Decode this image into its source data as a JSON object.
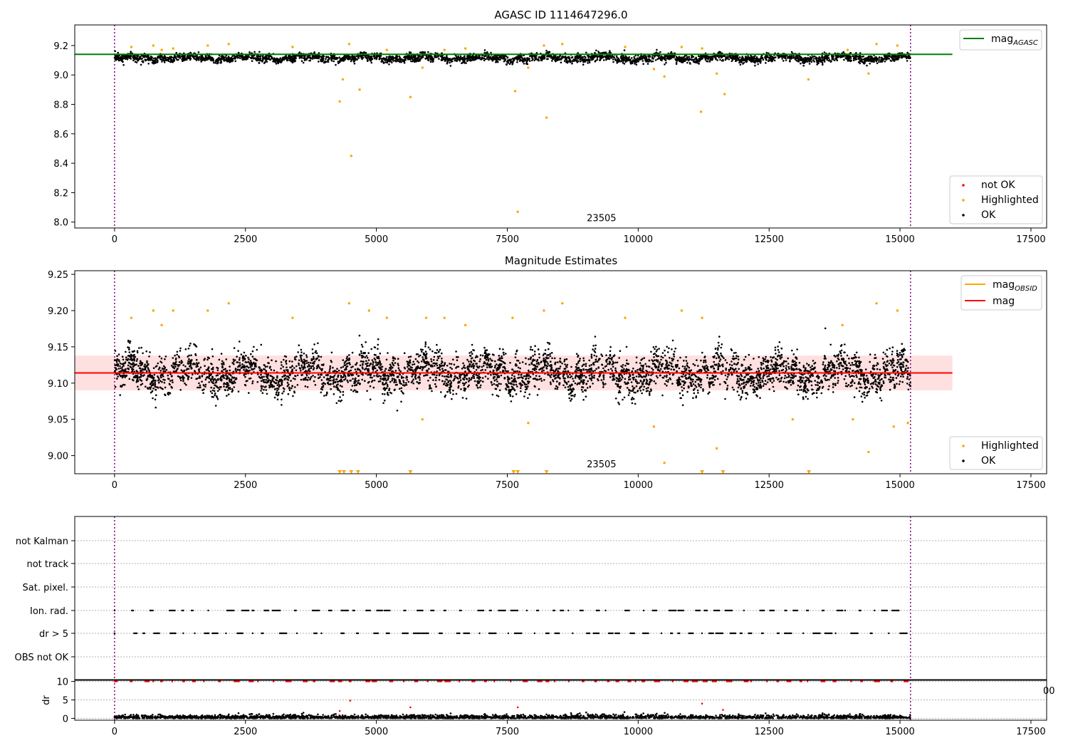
{
  "chart_data": [
    {
      "type": "scatter",
      "title": "AGASC ID 1114647296.0",
      "xlim": [
        -760,
        17800
      ],
      "ylim": [
        7.96,
        9.34
      ],
      "xticks": [
        0,
        2500,
        5000,
        7500,
        10000,
        12500,
        15000,
        17500
      ],
      "xtick_labels": [
        "0",
        "2500",
        "5000",
        "7500",
        "10000",
        "12500",
        "15000",
        "17500"
      ],
      "yticks": [
        8.0,
        8.2,
        8.4,
        8.6,
        8.8,
        9.0,
        9.2
      ],
      "ytick_labels": [
        "8.0",
        "8.2",
        "8.4",
        "8.6",
        "8.8",
        "9.0",
        "9.2"
      ],
      "vlines": [
        0,
        15200
      ],
      "annotation": {
        "text": "23505",
        "x": 7600,
        "y": 8.0
      },
      "hline": {
        "name": "mag",
        "sub": "AGASC",
        "value": 9.14,
        "x_range": [
          -760,
          16000
        ],
        "color": "#008000"
      },
      "series": [
        {
          "name": "not OK",
          "color": "#ff0000",
          "points": []
        },
        {
          "name": "Highlighted",
          "color": "#ffa500",
          "points": [
            [
              320,
              9.19
            ],
            [
              740,
              9.2
            ],
            [
              900,
              9.17
            ],
            [
              1120,
              9.18
            ],
            [
              1780,
              9.2
            ],
            [
              2180,
              9.21
            ],
            [
              3400,
              9.19
            ],
            [
              4300,
              8.82
            ],
            [
              4360,
              8.97
            ],
            [
              4480,
              9.21
            ],
            [
              4520,
              8.45
            ],
            [
              4680,
              8.9
            ],
            [
              5200,
              9.17
            ],
            [
              5650,
              8.85
            ],
            [
              5880,
              9.05
            ],
            [
              6300,
              9.17
            ],
            [
              6700,
              9.18
            ],
            [
              7650,
              8.89
            ],
            [
              7700,
              8.07
            ],
            [
              7900,
              9.05
            ],
            [
              8200,
              9.2
            ],
            [
              8250,
              8.71
            ],
            [
              8550,
              9.21
            ],
            [
              9750,
              9.19
            ],
            [
              10300,
              9.04
            ],
            [
              10500,
              8.99
            ],
            [
              10830,
              9.19
            ],
            [
              11200,
              8.75
            ],
            [
              11220,
              9.18
            ],
            [
              11500,
              9.01
            ],
            [
              11650,
              8.87
            ],
            [
              13250,
              8.97
            ],
            [
              14000,
              9.17
            ],
            [
              14400,
              9.01
            ],
            [
              14550,
              9.21
            ],
            [
              14950,
              9.2
            ]
          ]
        },
        {
          "name": "OK",
          "color": "#000000",
          "band": {
            "center": 9.115,
            "spread": 0.03
          }
        }
      ],
      "legend": [
        "mag_AGASC (top-right)",
        "not OK / Highlighted / OK (bottom-right)"
      ]
    },
    {
      "type": "scatter",
      "title": "Magnitude Estimates",
      "xlim": [
        -760,
        17800
      ],
      "ylim": [
        8.975,
        9.255
      ],
      "xticks": [
        0,
        2500,
        5000,
        7500,
        10000,
        12500,
        15000,
        17500
      ],
      "xtick_labels": [
        "0",
        "2500",
        "5000",
        "7500",
        "10000",
        "12500",
        "15000",
        "17500"
      ],
      "yticks": [
        9.0,
        9.05,
        9.1,
        9.15,
        9.2,
        9.25
      ],
      "ytick_labels": [
        "9.00",
        "9.05",
        "9.10",
        "9.15",
        "9.20",
        "9.25"
      ],
      "vlines": [
        0,
        15200
      ],
      "annotation": {
        "text": "23505",
        "x": 7600,
        "y": 8.982
      },
      "hline": {
        "name": "mag",
        "value": 9.114,
        "x_range": [
          -760,
          16000
        ],
        "color": "#ff0000"
      },
      "band": {
        "low": 9.09,
        "high": 9.138,
        "color": "#ffcccc"
      },
      "mag_obsid_sub": "OBSID",
      "series": [
        {
          "name": "Highlighted",
          "color": "#ffa500",
          "points": [
            [
              320,
              9.19
            ],
            [
              740,
              9.2
            ],
            [
              900,
              9.18
            ],
            [
              1120,
              9.2
            ],
            [
              1780,
              9.2
            ],
            [
              2180,
              9.21
            ],
            [
              3400,
              9.19
            ],
            [
              4480,
              9.21
            ],
            [
              4860,
              9.2
            ],
            [
              5200,
              9.19
            ],
            [
              5880,
              9.05
            ],
            [
              5950,
              9.19
            ],
            [
              6300,
              9.19
            ],
            [
              6700,
              9.18
            ],
            [
              7600,
              9.19
            ],
            [
              7900,
              9.045
            ],
            [
              8200,
              9.2
            ],
            [
              8550,
              9.21
            ],
            [
              9750,
              9.19
            ],
            [
              10300,
              9.04
            ],
            [
              10500,
              8.99
            ],
            [
              10830,
              9.2
            ],
            [
              11220,
              9.19
            ],
            [
              11500,
              9.01
            ],
            [
              12950,
              9.05
            ],
            [
              13900,
              9.18
            ],
            [
              14100,
              9.05
            ],
            [
              14400,
              9.005
            ],
            [
              14550,
              9.21
            ],
            [
              14880,
              9.04
            ],
            [
              14950,
              9.2
            ],
            [
              15150,
              9.045
            ]
          ]
        },
        {
          "name": "OK",
          "color": "#000000",
          "band": {
            "center": 9.114,
            "spread": 0.028
          }
        }
      ],
      "floor_markers": [
        4300,
        4380,
        4520,
        4650,
        5650,
        7620,
        7700,
        8250,
        11220,
        11620,
        13260
      ],
      "legend": [
        "mag_OBSID / mag (top-right)",
        "Highlighted / OK (bottom-right)"
      ]
    },
    {
      "type": "scatter",
      "title": "",
      "xlim": [
        -760,
        17800
      ],
      "xticks": [
        0,
        2500,
        5000,
        7500,
        10000,
        12500,
        15000,
        17500
      ],
      "xtick_labels": [
        "0",
        "2500",
        "5000",
        "7500",
        "10000",
        "12500",
        "15000",
        "17500"
      ],
      "flag_labels": [
        "not Kalman",
        "not track",
        "Sat. pixel.",
        "Ion. rad.",
        "dr > 5",
        "OBS not OK"
      ],
      "flag_rows_with_points": [
        "Ion. rad.",
        "dr > 5"
      ],
      "dr_label": "dr",
      "dr_ylim": [
        -0.5,
        10.5
      ],
      "dr_yticks": [
        0,
        5,
        10
      ],
      "dr_ytick_labels": [
        "0",
        "5",
        "10"
      ],
      "clipped_tick_text": "00",
      "vlines": [
        0,
        15200
      ],
      "dr_outliers": [
        [
          4300,
          2.0
        ],
        [
          4500,
          4.8
        ],
        [
          5650,
          3.0
        ],
        [
          7700,
          3.0
        ],
        [
          11220,
          4.0
        ],
        [
          11620,
          2.3
        ]
      ]
    }
  ]
}
